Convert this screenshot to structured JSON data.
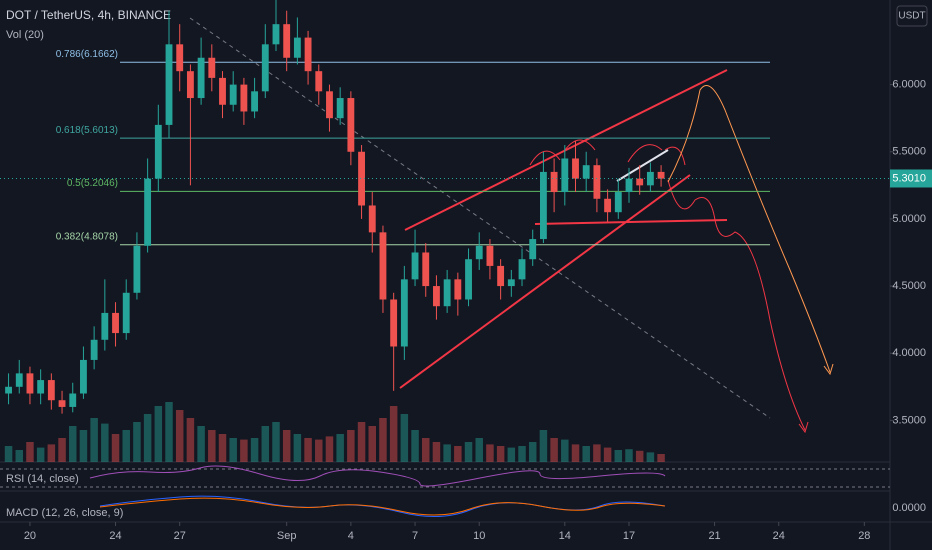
{
  "chart_data": {
    "type": "candlestick",
    "title": "DOT / TetherUS, 4h, BINANCE",
    "subtitle": "Vol (20)",
    "currency": "USDT",
    "up_color": "#26a69a",
    "down_color": "#ef5350",
    "x": [
      19,
      19.5,
      20,
      20.5,
      21,
      21.5,
      22,
      22.5,
      23,
      23.5,
      24,
      24.5,
      25,
      25.5,
      26,
      26.5,
      27,
      27.5,
      28,
      28.5,
      29,
      29.5,
      30,
      30.5,
      31,
      31.5,
      32,
      32.5,
      33,
      33.5,
      34,
      34.5,
      35,
      35.5,
      36,
      36.5,
      37,
      37.5,
      38,
      38.5,
      39,
      39.5,
      40,
      40.5,
      41,
      41.5,
      42,
      42.5,
      43,
      43.5,
      44,
      44.5,
      45,
      45.5,
      46,
      46.5,
      47,
      47.5,
      48,
      48.5,
      49,
      49.5
    ],
    "open": [
      3.7,
      3.75,
      3.85,
      3.7,
      3.8,
      3.65,
      3.6,
      3.7,
      3.95,
      4.1,
      4.3,
      4.15,
      4.45,
      4.8,
      5.3,
      5.7,
      6.3,
      6.1,
      5.9,
      6.2,
      6.05,
      5.85,
      6.0,
      5.8,
      5.95,
      6.3,
      6.45,
      6.2,
      6.35,
      6.1,
      5.95,
      5.75,
      5.9,
      5.5,
      5.1,
      4.9,
      4.4,
      4.05,
      4.55,
      4.75,
      4.5,
      4.35,
      4.55,
      4.4,
      4.7,
      4.8,
      4.65,
      4.5,
      4.55,
      4.7,
      4.85,
      5.35,
      5.2,
      5.45,
      5.3,
      5.4,
      5.15,
      5.05,
      5.2,
      5.3,
      5.25,
      5.35
    ],
    "high": [
      3.85,
      3.95,
      3.9,
      3.88,
      3.85,
      3.72,
      3.78,
      4.05,
      4.2,
      4.55,
      4.38,
      4.55,
      4.9,
      5.45,
      5.85,
      6.55,
      6.45,
      6.15,
      6.35,
      6.3,
      6.1,
      6.1,
      6.05,
      6.05,
      6.45,
      6.63,
      6.55,
      6.5,
      6.4,
      6.15,
      6.0,
      5.98,
      5.95,
      5.55,
      5.2,
      4.95,
      4.45,
      4.65,
      4.92,
      4.82,
      4.58,
      4.62,
      4.6,
      4.78,
      4.9,
      4.85,
      4.7,
      4.62,
      4.78,
      4.92,
      5.5,
      5.45,
      5.55,
      5.58,
      5.5,
      5.45,
      5.22,
      5.3,
      5.38,
      5.4,
      5.42,
      5.4
    ],
    "low": [
      3.62,
      3.7,
      3.62,
      3.62,
      3.58,
      3.55,
      3.56,
      3.66,
      3.88,
      4.02,
      4.05,
      4.1,
      4.4,
      4.75,
      5.2,
      5.6,
      5.95,
      5.25,
      5.85,
      5.95,
      5.75,
      5.8,
      5.7,
      5.75,
      5.9,
      6.25,
      6.1,
      6.15,
      6.0,
      5.85,
      5.65,
      5.7,
      5.4,
      5.0,
      4.75,
      4.3,
      3.72,
      3.95,
      4.5,
      4.42,
      4.25,
      4.3,
      4.28,
      4.35,
      4.62,
      4.55,
      4.4,
      4.42,
      4.5,
      4.65,
      4.82,
      5.05,
      5.1,
      5.2,
      5.2,
      5.05,
      4.98,
      5.0,
      5.12,
      5.18,
      5.2,
      5.24
    ],
    "close": [
      3.75,
      3.85,
      3.7,
      3.8,
      3.65,
      3.6,
      3.7,
      3.95,
      4.1,
      4.3,
      4.15,
      4.45,
      4.8,
      5.3,
      5.7,
      6.3,
      6.1,
      5.9,
      6.2,
      6.05,
      5.85,
      6.0,
      5.8,
      5.95,
      6.3,
      6.45,
      6.2,
      6.35,
      6.1,
      5.95,
      5.75,
      5.9,
      5.5,
      5.1,
      4.9,
      4.4,
      4.05,
      4.55,
      4.75,
      4.5,
      4.35,
      4.55,
      4.4,
      4.7,
      4.8,
      4.65,
      4.5,
      4.55,
      4.7,
      4.85,
      5.35,
      5.2,
      5.45,
      5.3,
      5.4,
      5.15,
      5.05,
      5.2,
      5.3,
      5.25,
      5.35,
      5.3
    ],
    "volume": [
      20,
      15,
      25,
      18,
      22,
      30,
      45,
      40,
      55,
      48,
      35,
      40,
      50,
      60,
      70,
      75,
      65,
      55,
      45,
      40,
      35,
      30,
      28,
      30,
      45,
      50,
      40,
      35,
      30,
      28,
      32,
      35,
      40,
      50,
      45,
      55,
      70,
      60,
      40,
      30,
      25,
      22,
      20,
      25,
      30,
      22,
      20,
      18,
      20,
      25,
      40,
      30,
      28,
      22,
      20,
      22,
      18,
      15,
      16,
      14,
      12,
      10
    ],
    "xlim": [
      18.6,
      60.2
    ],
    "xticks": [
      {
        "value": 20,
        "label": "20"
      },
      {
        "value": 24,
        "label": "24"
      },
      {
        "value": 27,
        "label": "27"
      },
      {
        "value": 32,
        "label": "Sep"
      },
      {
        "value": 35,
        "label": "4"
      },
      {
        "value": 38,
        "label": "7"
      },
      {
        "value": 41,
        "label": "10"
      },
      {
        "value": 45,
        "label": "14"
      },
      {
        "value": 48,
        "label": "17"
      },
      {
        "value": 52,
        "label": "21"
      },
      {
        "value": 55,
        "label": "24"
      },
      {
        "value": 59,
        "label": "28"
      }
    ],
    "ylim": [
      3.19,
      6.63
    ],
    "yticks": [
      {
        "value": 3.5,
        "label": "3.5000"
      },
      {
        "value": 4,
        "label": "4.0000"
      },
      {
        "value": 4.5,
        "label": "4.5000"
      },
      {
        "value": 5,
        "label": "5.0000"
      },
      {
        "value": 5.5,
        "label": "5.5000"
      },
      {
        "value": 6,
        "label": "6.0000"
      }
    ],
    "last_price": {
      "value": 5.301,
      "label": "5.3010"
    },
    "fib_levels": [
      {
        "value": 6.1662,
        "label": "0.786(6.1662)",
        "color": "#8fbfe6"
      },
      {
        "value": 5.6013,
        "label": "0.618(5.6013)",
        "color": "#3fa6a0"
      },
      {
        "value": 5.2046,
        "label": "0.5(5.2046)",
        "color": "#5fb864"
      },
      {
        "value": 4.8078,
        "label": "0.382(4.8078)",
        "color": "#a5d6a7"
      }
    ],
    "rsi_label": "RSI (14, close)",
    "macd_label": "MACD (12, 26, close, 9)",
    "macd_tick": {
      "value": 0,
      "label": "0.0000"
    }
  }
}
